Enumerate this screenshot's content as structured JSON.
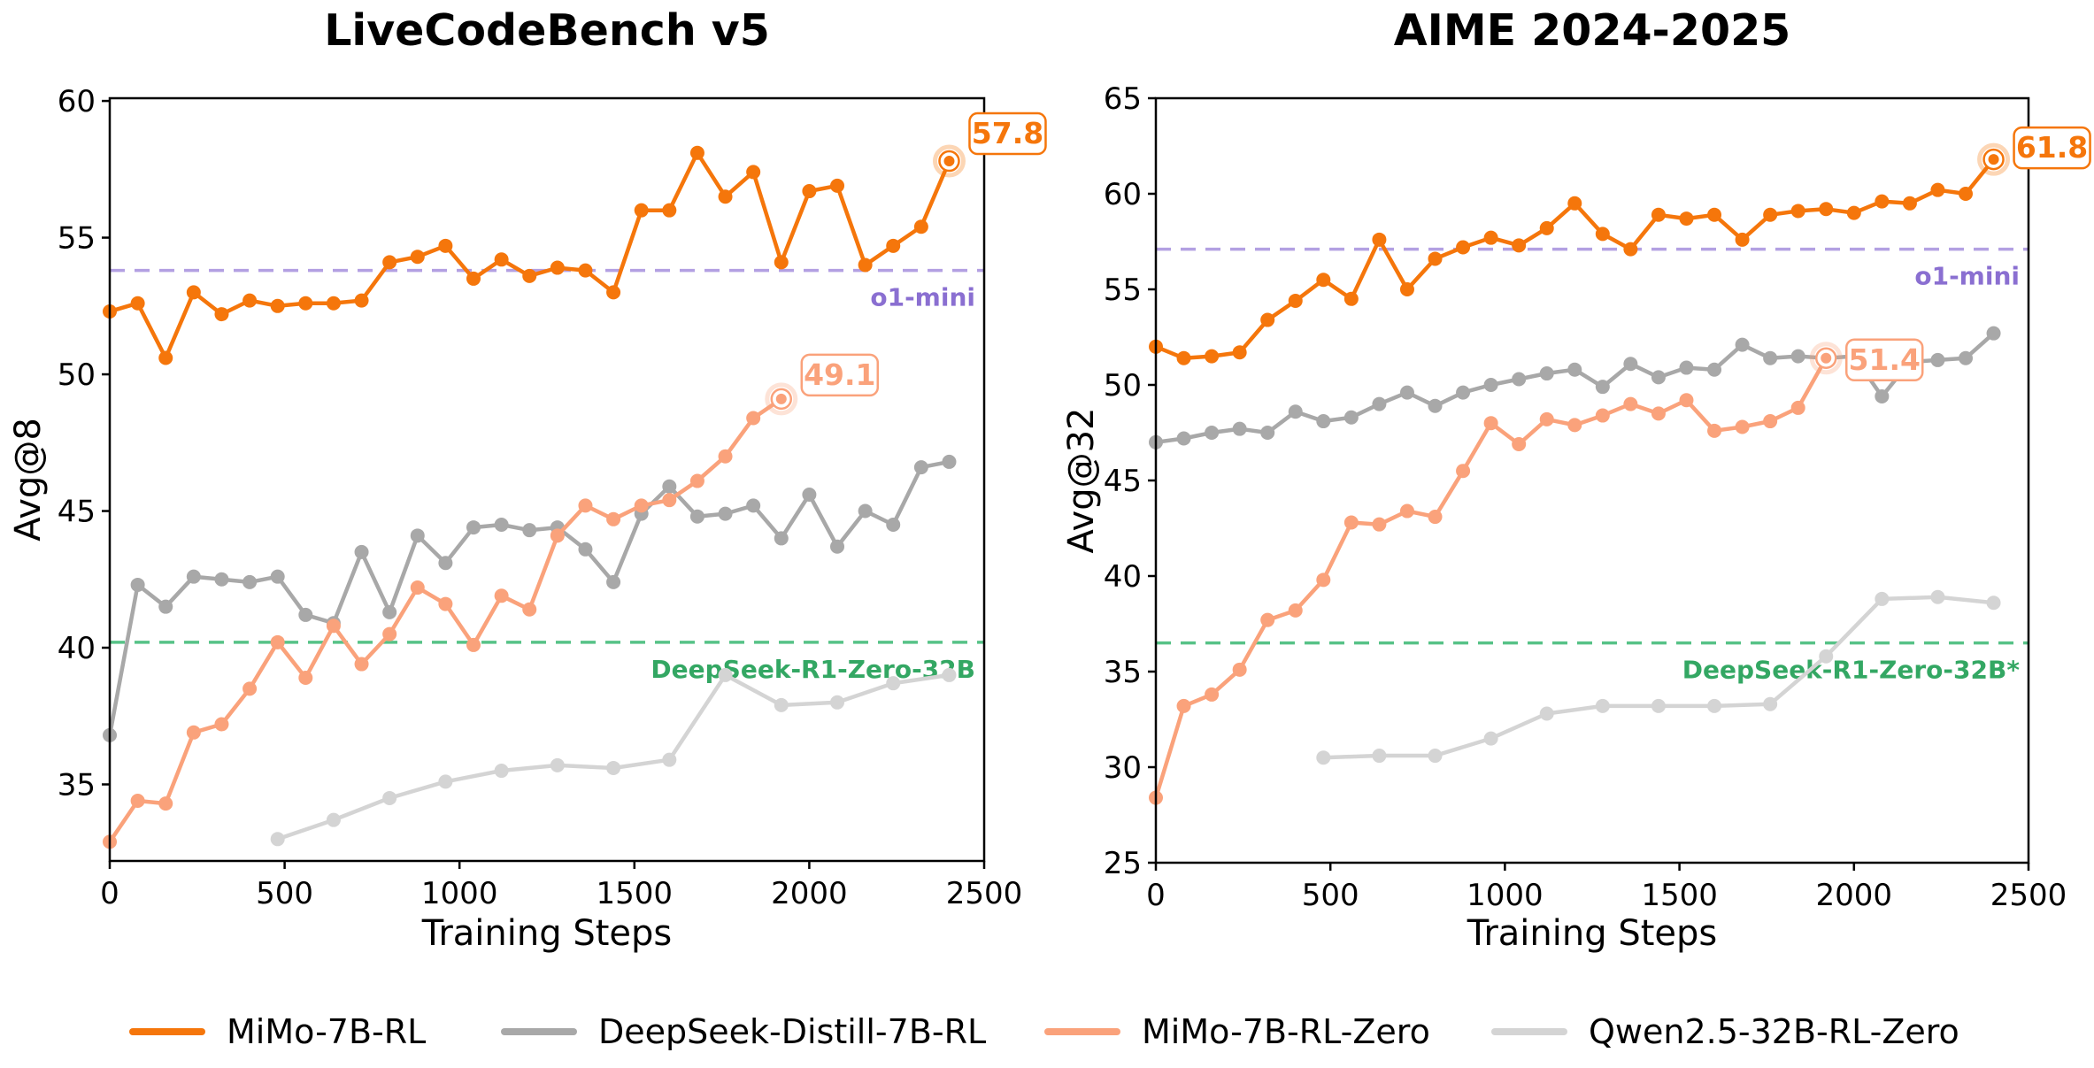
{
  "figure": {
    "legend": [
      {
        "label": "MiMo-7B-RL",
        "color": "#F5760B"
      },
      {
        "label": "DeepSeek-Distill-7B-RL",
        "color": "#A8A8A8"
      },
      {
        "label": "MiMo-7B-RL-Zero",
        "color": "#FAA27B"
      },
      {
        "label": "Qwen2.5-32B-RL-Zero",
        "color": "#D4D4D4"
      }
    ]
  },
  "chart_data": [
    {
      "type": "line",
      "title": "LiveCodeBench v5",
      "xlabel": "Training Steps",
      "ylabel": "Avg@8",
      "xlim": [
        0,
        2500
      ],
      "ylim": [
        32.2,
        60.1
      ],
      "xticks": [
        0,
        500,
        1000,
        1500,
        2000,
        2500
      ],
      "yticks": [
        35,
        40,
        45,
        50,
        55,
        60
      ],
      "grid": false,
      "legend_position": "below-figure",
      "hlines": [
        {
          "label": "o1-mini",
          "value": 53.8,
          "color": "#B3A0E2",
          "label_color": "#8A6FD1",
          "style": "dashed"
        },
        {
          "label": "DeepSeek-R1-Zero-32B",
          "value": 40.2,
          "color": "#57C287",
          "label_color": "#33A763",
          "style": "dashed"
        }
      ],
      "series": [
        {
          "name": "MiMo-7B-RL",
          "color": "#F5760B",
          "end_marker": "ring",
          "annotation": "57.8",
          "x": [
            0,
            80,
            160,
            240,
            320,
            400,
            480,
            560,
            640,
            720,
            800,
            880,
            960,
            1040,
            1120,
            1200,
            1280,
            1360,
            1440,
            1520,
            1600,
            1680,
            1760,
            1840,
            1920,
            2000,
            2080,
            2160,
            2240,
            2320,
            2400
          ],
          "values": [
            52.3,
            52.6,
            50.6,
            53.0,
            52.2,
            52.7,
            52.5,
            52.6,
            52.6,
            52.7,
            54.1,
            54.3,
            54.7,
            53.5,
            54.2,
            53.6,
            53.9,
            53.8,
            53.0,
            56.0,
            56.0,
            58.1,
            56.5,
            57.4,
            54.1,
            56.7,
            56.9,
            54.0,
            54.7,
            55.4,
            57.8
          ]
        },
        {
          "name": "DeepSeek-Distill-7B-RL",
          "color": "#A8A8A8",
          "x": [
            0,
            80,
            160,
            240,
            320,
            400,
            480,
            560,
            640,
            720,
            800,
            880,
            960,
            1040,
            1120,
            1200,
            1280,
            1360,
            1440,
            1520,
            1600,
            1680,
            1760,
            1840,
            1920,
            2000,
            2080,
            2160,
            2240,
            2320,
            2400
          ],
          "values": [
            36.8,
            42.3,
            41.5,
            42.6,
            42.5,
            42.4,
            42.6,
            41.2,
            40.9,
            43.5,
            41.3,
            44.1,
            43.1,
            44.4,
            44.5,
            44.3,
            44.4,
            43.6,
            42.4,
            44.9,
            45.9,
            44.8,
            44.9,
            45.2,
            44.0,
            45.6,
            43.7,
            45.0,
            44.5,
            46.6,
            46.8
          ]
        },
        {
          "name": "MiMo-7B-RL-Zero",
          "color": "#FAA27B",
          "end_marker": "ring",
          "annotation": "49.1",
          "x": [
            0,
            80,
            160,
            240,
            320,
            400,
            480,
            560,
            640,
            720,
            800,
            880,
            960,
            1040,
            1120,
            1200,
            1280,
            1360,
            1440,
            1520,
            1600,
            1680,
            1760,
            1840,
            1920
          ],
          "values": [
            32.9,
            34.4,
            34.3,
            36.9,
            37.2,
            38.5,
            40.2,
            38.9,
            40.8,
            39.4,
            40.5,
            42.2,
            41.6,
            40.1,
            41.9,
            41.4,
            44.1,
            45.2,
            44.7,
            45.2,
            45.4,
            46.1,
            47.0,
            48.4,
            49.1
          ]
        },
        {
          "name": "Qwen2.5-32B-RL-Zero",
          "color": "#D4D4D4",
          "x": [
            480,
            640,
            800,
            960,
            1120,
            1280,
            1440,
            1600,
            1760,
            1920,
            2080,
            2240,
            2400
          ],
          "values": [
            33.0,
            33.7,
            34.5,
            35.1,
            35.5,
            35.7,
            35.6,
            35.9,
            39.0,
            37.9,
            38.0,
            38.7,
            39.0
          ]
        }
      ]
    },
    {
      "type": "line",
      "title": "AIME 2024-2025",
      "xlabel": "Training Steps",
      "ylabel": "Avg@32",
      "xlim": [
        0,
        2500
      ],
      "ylim": [
        25,
        65
      ],
      "xticks": [
        0,
        500,
        1000,
        1500,
        2000,
        2500
      ],
      "yticks": [
        25,
        30,
        35,
        40,
        45,
        50,
        55,
        60,
        65
      ],
      "grid": false,
      "legend_position": "below-figure",
      "hlines": [
        {
          "label": "o1-mini",
          "value": 57.1,
          "color": "#B3A0E2",
          "label_color": "#8A6FD1",
          "style": "dashed"
        },
        {
          "label": "DeepSeek-R1-Zero-32B*",
          "value": 36.5,
          "color": "#57C287",
          "label_color": "#33A763",
          "style": "dashed"
        }
      ],
      "series": [
        {
          "name": "MiMo-7B-RL",
          "color": "#F5760B",
          "end_marker": "ring",
          "annotation": "61.8",
          "x": [
            0,
            80,
            160,
            240,
            320,
            400,
            480,
            560,
            640,
            720,
            800,
            880,
            960,
            1040,
            1120,
            1200,
            1280,
            1360,
            1440,
            1520,
            1600,
            1680,
            1760,
            1840,
            1920,
            2000,
            2080,
            2160,
            2240,
            2320,
            2400
          ],
          "values": [
            52.0,
            51.4,
            51.5,
            51.7,
            53.4,
            54.4,
            55.5,
            54.5,
            57.6,
            55.0,
            56.6,
            57.2,
            57.7,
            57.3,
            58.2,
            59.5,
            57.9,
            57.1,
            58.9,
            58.7,
            58.9,
            57.6,
            58.9,
            59.1,
            59.2,
            59.0,
            59.6,
            59.5,
            60.2,
            60.0,
            61.8
          ]
        },
        {
          "name": "DeepSeek-Distill-7B-RL",
          "color": "#A8A8A8",
          "x": [
            0,
            80,
            160,
            240,
            320,
            400,
            480,
            560,
            640,
            720,
            800,
            880,
            960,
            1040,
            1120,
            1200,
            1280,
            1360,
            1440,
            1520,
            1600,
            1680,
            1760,
            1840,
            1920,
            2000,
            2080,
            2160,
            2240,
            2320,
            2400
          ],
          "values": [
            47.0,
            47.2,
            47.5,
            47.7,
            47.5,
            48.6,
            48.1,
            48.3,
            49.0,
            49.6,
            48.9,
            49.6,
            50.0,
            50.3,
            50.6,
            50.8,
            49.9,
            51.1,
            50.4,
            50.9,
            50.8,
            52.1,
            51.4,
            51.5,
            51.4,
            51.5,
            49.4,
            51.2,
            51.3,
            51.4,
            52.7
          ]
        },
        {
          "name": "MiMo-7B-RL-Zero",
          "color": "#FAA27B",
          "end_marker": "ring",
          "annotation": "51.4",
          "x": [
            0,
            80,
            160,
            240,
            320,
            400,
            480,
            560,
            640,
            720,
            800,
            880,
            960,
            1040,
            1120,
            1200,
            1280,
            1360,
            1440,
            1520,
            1600,
            1680,
            1760,
            1840,
            1920
          ],
          "values": [
            28.4,
            33.2,
            33.8,
            35.1,
            37.7,
            38.2,
            39.8,
            42.8,
            42.7,
            43.4,
            43.1,
            45.5,
            48.0,
            46.9,
            48.2,
            47.9,
            48.4,
            49.0,
            48.5,
            49.2,
            47.6,
            47.8,
            48.1,
            48.8,
            51.4
          ]
        },
        {
          "name": "Qwen2.5-32B-RL-Zero",
          "color": "#D4D4D4",
          "x": [
            480,
            640,
            800,
            960,
            1120,
            1280,
            1440,
            1600,
            1760,
            1920,
            2080,
            2240,
            2400
          ],
          "values": [
            30.5,
            30.6,
            30.6,
            31.5,
            32.8,
            33.2,
            33.2,
            33.2,
            33.3,
            35.8,
            38.8,
            38.9,
            38.6
          ]
        }
      ]
    }
  ]
}
